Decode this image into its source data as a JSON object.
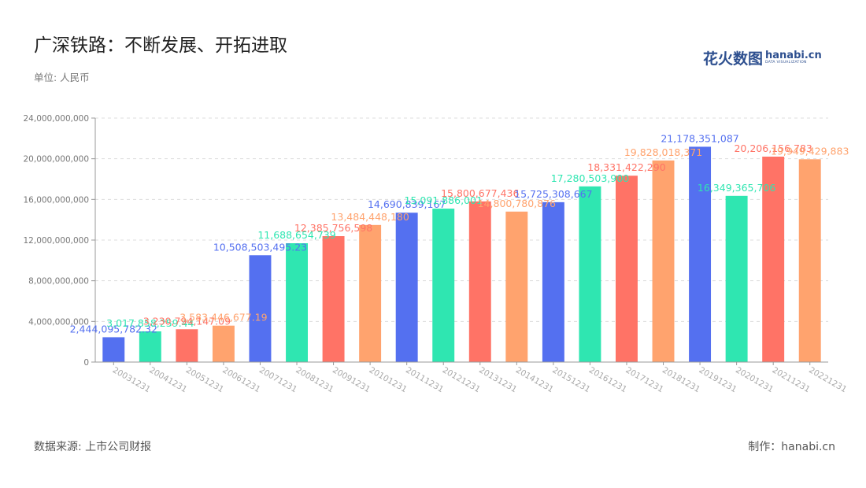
{
  "header": {
    "title": "广深铁路：不断发展、开拓进取",
    "unit": "单位: 人民币"
  },
  "logo": {
    "cn": "花火数图",
    "en": "hanabi.cn",
    "sub": "DATA VISUALIZATION"
  },
  "footer": {
    "source": "数据来源: 上市公司财报",
    "credit": "制作：hanabi.cn"
  },
  "colors": {
    "palette": [
      "#5470f0",
      "#2fe6b1",
      "#ff7366",
      "#ffa36e"
    ],
    "grid": "#dddddd",
    "axis_text": "#777777",
    "x_tick_text": "#aaaaaa"
  },
  "chart_data": {
    "type": "bar",
    "title": "",
    "xlabel": "",
    "ylabel": "",
    "ylim": [
      0,
      24000000000
    ],
    "yticks": [
      0,
      4000000000,
      8000000000,
      12000000000,
      16000000000,
      20000000000,
      24000000000
    ],
    "ytick_labels": [
      "0",
      "4,000,000,000",
      "8,000,000,000",
      "12,000,000,000",
      "16,000,000,000",
      "20,000,000,000",
      "24,000,000,000"
    ],
    "grid": true,
    "categories": [
      "20031231",
      "20041231",
      "20051231",
      "20061231",
      "20071231",
      "20081231",
      "20091231",
      "20101231",
      "20111231",
      "20121231",
      "20131231",
      "20141231",
      "20151231",
      "20161231",
      "20171231",
      "20181231",
      "20191231",
      "20201231",
      "20211231",
      "20221231"
    ],
    "values": [
      2444095782.32,
      3017858259.44,
      3230794147.09,
      3583446677.19,
      10508503495.23,
      11688654739,
      12385756598,
      13484448180,
      14690839167,
      15091886001,
      15800677436,
      14800780876,
      15725308667,
      17280503900,
      18331422290,
      19828018371,
      21178351087,
      16349365706,
      20206156783,
      19949429883
    ],
    "value_labels": [
      "2,444,095,782.32",
      "3,017,858,259.44",
      "3,230,794,147.09",
      "3,583,446,677.19",
      "10,508,503,495.23",
      "11,688,654,739",
      "12,385,756,598",
      "13,484,448,180",
      "14,690,839,167",
      "15,091,886,001",
      "15,800,677,436",
      "14,800,780,876",
      "15,725,308,667",
      "17,280,503,900",
      "18,331,422,290",
      "19,828,018,371",
      "21,178,351,087",
      "16,349,365,706",
      "20,206,156,783",
      "19,949,429,883"
    ]
  }
}
